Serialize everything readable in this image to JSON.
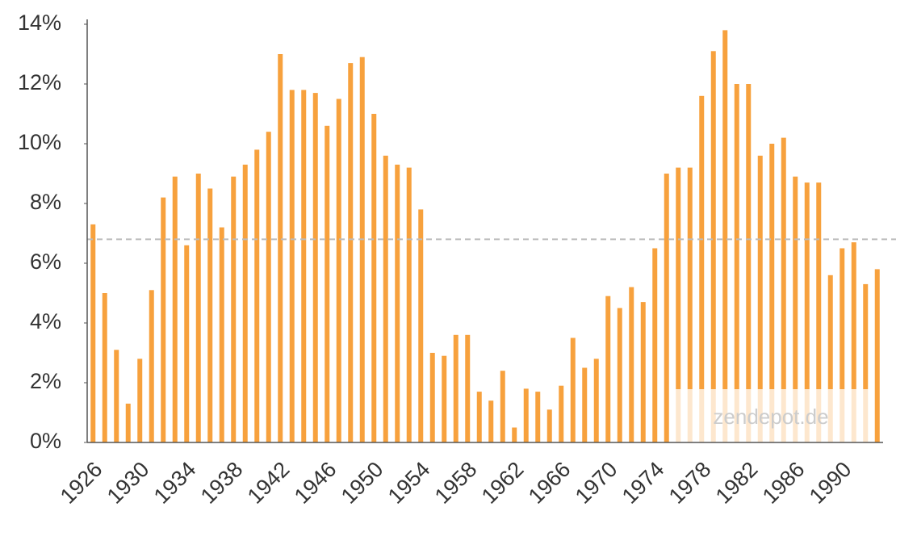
{
  "chart_data": {
    "type": "bar",
    "categories": [
      "1926",
      null,
      null,
      null,
      "1930",
      null,
      null,
      null,
      "1934",
      null,
      null,
      null,
      "1938",
      null,
      null,
      null,
      "1942",
      null,
      null,
      null,
      "1946",
      null,
      null,
      null,
      "1950",
      null,
      null,
      null,
      "1954",
      null,
      null,
      null,
      "1958",
      null,
      null,
      null,
      "1962",
      null,
      null,
      null,
      "1966",
      null,
      null,
      null,
      "1970",
      null,
      null,
      null,
      "1974",
      null,
      null,
      null,
      "1978",
      null,
      null,
      null,
      "1982",
      null,
      null,
      null,
      "1986",
      null,
      null,
      null,
      "1990",
      null,
      null,
      null
    ],
    "values": [
      7.3,
      5.0,
      3.1,
      1.3,
      2.8,
      5.1,
      8.2,
      8.9,
      6.6,
      9.0,
      8.5,
      7.2,
      8.9,
      9.3,
      9.8,
      10.4,
      13.0,
      11.8,
      11.8,
      11.7,
      10.6,
      11.5,
      12.7,
      12.9,
      11.0,
      9.6,
      9.3,
      9.2,
      7.8,
      3.0,
      2.9,
      3.6,
      3.6,
      1.7,
      1.4,
      2.4,
      0.5,
      1.8,
      1.7,
      1.1,
      1.9,
      3.5,
      2.5,
      2.8,
      4.9,
      4.5,
      5.2,
      4.7,
      6.5,
      9.0,
      9.2,
      9.2,
      11.6,
      13.1,
      13.8,
      12.0,
      12.0,
      9.6,
      10.0,
      10.2,
      8.9,
      8.7,
      8.7,
      5.6,
      6.5,
      6.7,
      5.3,
      5.8
    ],
    "color": "#f7a13d",
    "reference_line": 6.8,
    "watermark": "zendepot.de",
    "ylim": [
      0,
      14
    ],
    "yticks": [
      {
        "value": 0,
        "label": "0%"
      },
      {
        "value": 2,
        "label": "2%"
      },
      {
        "value": 4,
        "label": "4%"
      },
      {
        "value": 6,
        "label": "6%"
      },
      {
        "value": 8,
        "label": "8%"
      },
      {
        "value": 10,
        "label": "10%"
      },
      {
        "value": 12,
        "label": "12%"
      },
      {
        "value": 14,
        "label": "14%"
      }
    ],
    "grid": false
  }
}
